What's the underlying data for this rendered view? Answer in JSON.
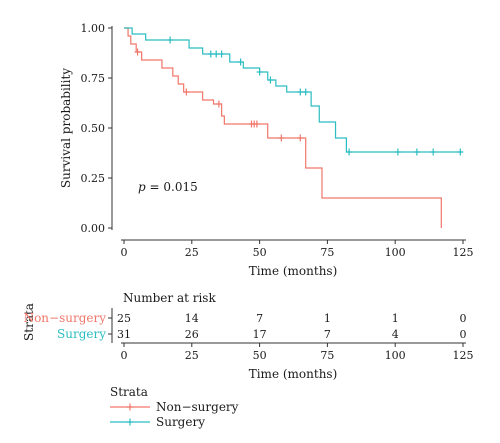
{
  "chart_data": {
    "type": "line",
    "title": "",
    "annotation_p": "p = 0.015",
    "annotation_p_prefix": "p",
    "annotation_p_suffix": " = 0.015",
    "xlabel": "Time (months)",
    "ylabel": "Survival probability",
    "xlim": [
      0,
      125
    ],
    "ylim": [
      0,
      1
    ],
    "x_ticks": [
      "0",
      "25",
      "50",
      "75",
      "100",
      "125"
    ],
    "y_ticks": [
      "0.00",
      "0.25",
      "0.50",
      "0.75",
      "1.00"
    ],
    "x_tick_values": [
      0,
      25,
      50,
      75,
      100,
      125
    ],
    "y_tick_values": [
      0,
      0.25,
      0.5,
      0.75,
      1.0
    ],
    "series": [
      {
        "name": "Non−surgery",
        "color": "#f0776b",
        "steps": [
          [
            0,
            1.0
          ],
          [
            1.5,
            0.96
          ],
          [
            2.5,
            0.92
          ],
          [
            4.5,
            0.88
          ],
          [
            6.5,
            0.84
          ],
          [
            14,
            0.8
          ],
          [
            18,
            0.76
          ],
          [
            20,
            0.72
          ],
          [
            22,
            0.68
          ],
          [
            29,
            0.64
          ],
          [
            33,
            0.62
          ],
          [
            36,
            0.56
          ],
          [
            37,
            0.52
          ],
          [
            47,
            0.52
          ],
          [
            53,
            0.45
          ],
          [
            66,
            0.45
          ],
          [
            67,
            0.3
          ],
          [
            72,
            0.3
          ],
          [
            73,
            0.15
          ],
          [
            117,
            0.15
          ],
          [
            117,
            0.0
          ]
        ],
        "censor": [
          [
            5,
            0.88
          ],
          [
            23,
            0.68
          ],
          [
            35,
            0.62
          ],
          [
            47,
            0.52
          ],
          [
            48,
            0.52
          ],
          [
            49,
            0.52
          ],
          [
            58,
            0.45
          ],
          [
            65,
            0.45
          ]
        ]
      },
      {
        "name": "Surgery",
        "color": "#2bbdc0",
        "steps": [
          [
            0,
            1.0
          ],
          [
            3,
            0.97
          ],
          [
            8,
            0.94
          ],
          [
            24,
            0.9
          ],
          [
            29,
            0.87
          ],
          [
            39,
            0.83
          ],
          [
            44,
            0.8
          ],
          [
            50,
            0.78
          ],
          [
            53,
            0.74
          ],
          [
            56,
            0.71
          ],
          [
            60,
            0.68
          ],
          [
            69,
            0.61
          ],
          [
            72,
            0.53
          ],
          [
            78,
            0.45
          ],
          [
            82,
            0.38
          ],
          [
            125,
            0.38
          ]
        ],
        "censor": [
          [
            17,
            0.94
          ],
          [
            32,
            0.87
          ],
          [
            34,
            0.87
          ],
          [
            36,
            0.87
          ],
          [
            43,
            0.83
          ],
          [
            50,
            0.78
          ],
          [
            54,
            0.74
          ],
          [
            65,
            0.68
          ],
          [
            67,
            0.68
          ],
          [
            83,
            0.38
          ],
          [
            101,
            0.38
          ],
          [
            108,
            0.38
          ],
          [
            114,
            0.38
          ],
          [
            124,
            0.38
          ]
        ]
      }
    ],
    "risk_table": {
      "title": "Number at risk",
      "ylabel": "Strata",
      "xlabel": "Time (months)",
      "x_ticks": [
        "0",
        "25",
        "50",
        "75",
        "100",
        "125"
      ],
      "rows": [
        {
          "label": "Non−surgery",
          "color": "#f0776b",
          "values": [
            "25",
            "14",
            "7",
            "1",
            "1",
            "0"
          ]
        },
        {
          "label": "Surgery",
          "color": "#2bbdc0",
          "values": [
            "31",
            "26",
            "17",
            "7",
            "4",
            "0"
          ]
        }
      ]
    },
    "legend": {
      "title": "Strata",
      "placement": "bottom-left",
      "items": [
        "Non−surgery",
        "Surgery"
      ]
    },
    "grid": false
  }
}
